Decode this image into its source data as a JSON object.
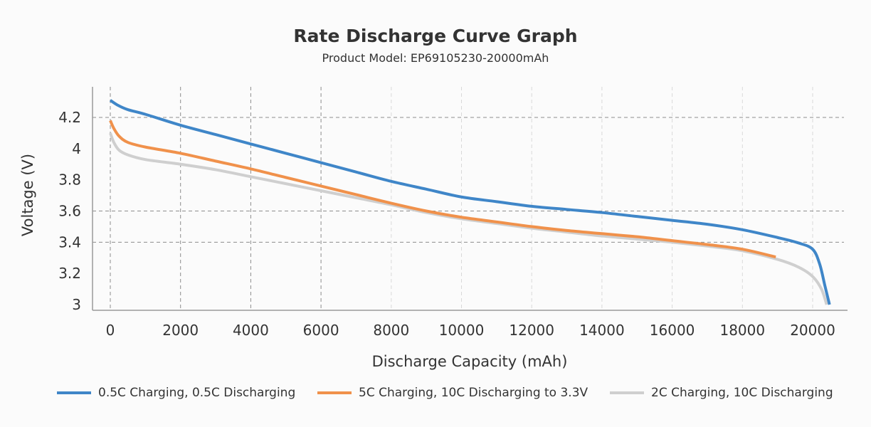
{
  "chart_data": {
    "type": "line",
    "title": "Rate Discharge Curve Graph",
    "subtitle": "Product Model: EP69105230-20000mAh",
    "xlabel": "Discharge Capacity (mAh)",
    "ylabel": "Voltage (V)",
    "xlim": [
      -400,
      21000
    ],
    "ylim": [
      3,
      4.42
    ],
    "xticks": [
      0,
      2000,
      4000,
      6000,
      8000,
      10000,
      12000,
      14000,
      16000,
      18000,
      20000
    ],
    "xtick_labels": [
      "0",
      "2000",
      "4000",
      "6000",
      "8000",
      "10000",
      "12000",
      "14000",
      "16000",
      "18000",
      "20000"
    ],
    "yticks": [
      3,
      3.2,
      3.4,
      3.6,
      3.8,
      4,
      4.2
    ],
    "ytick_labels": [
      "3",
      "3.2",
      "3.4",
      "3.6",
      "3.8",
      "4",
      "4.2"
    ],
    "x_gridlines": [
      0,
      2000,
      4000,
      6000,
      8000,
      10000,
      12000,
      14000,
      16000,
      18000,
      20000
    ],
    "y_gridlines": [
      3.4,
      3.6,
      4.2
    ],
    "grid": true,
    "legend_position": "bottom",
    "series": [
      {
        "name": "0.5C Charging, 0.5C Discharging",
        "color": "#3f86c8",
        "x": [
          0,
          200,
          500,
          1000,
          2000,
          3000,
          4000,
          5000,
          6000,
          7000,
          8000,
          9000,
          10000,
          11000,
          12000,
          13000,
          14000,
          15000,
          16000,
          17000,
          18000,
          19000,
          19600,
          20000,
          20200,
          20350,
          20480
        ],
        "y": [
          4.31,
          4.28,
          4.25,
          4.22,
          4.15,
          4.09,
          4.03,
          3.97,
          3.91,
          3.85,
          3.79,
          3.74,
          3.69,
          3.66,
          3.63,
          3.61,
          3.59,
          3.565,
          3.54,
          3.515,
          3.48,
          3.43,
          3.395,
          3.355,
          3.26,
          3.12,
          3.0
        ]
      },
      {
        "name": "5C Charging, 10C Discharging to 3.3V",
        "color": "#f0914b",
        "x": [
          0,
          100,
          250,
          500,
          1000,
          2000,
          3000,
          4000,
          5000,
          6000,
          7000,
          8000,
          9000,
          10000,
          11000,
          12000,
          13000,
          14000,
          15000,
          16000,
          17000,
          18000,
          18950
        ],
        "y": [
          4.18,
          4.13,
          4.08,
          4.04,
          4.01,
          3.97,
          3.92,
          3.87,
          3.815,
          3.76,
          3.705,
          3.65,
          3.6,
          3.56,
          3.53,
          3.5,
          3.475,
          3.455,
          3.435,
          3.41,
          3.385,
          3.355,
          3.305
        ]
      },
      {
        "name": "2C Charging, 10C Discharging",
        "color": "#cfcfcf",
        "x": [
          0,
          100,
          250,
          500,
          1000,
          2000,
          3000,
          4000,
          5000,
          6000,
          7000,
          8000,
          9000,
          10000,
          11000,
          12000,
          13000,
          14000,
          15000,
          16000,
          17000,
          18000,
          19000,
          19600,
          20000,
          20250,
          20400
        ],
        "y": [
          4.1,
          4.04,
          3.99,
          3.96,
          3.93,
          3.9,
          3.865,
          3.82,
          3.775,
          3.73,
          3.685,
          3.64,
          3.59,
          3.55,
          3.52,
          3.49,
          3.465,
          3.44,
          3.42,
          3.4,
          3.375,
          3.345,
          3.29,
          3.24,
          3.18,
          3.1,
          3.0
        ]
      }
    ]
  }
}
